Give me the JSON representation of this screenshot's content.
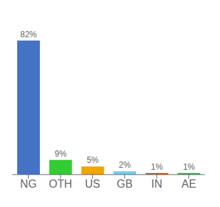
{
  "chart_data": {
    "type": "bar",
    "categories": [
      "NG",
      "OTH",
      "US",
      "GB",
      "IN",
      "AE"
    ],
    "values": [
      82,
      9,
      5,
      2,
      1,
      1
    ],
    "value_labels": [
      "82%",
      "9%",
      "5%",
      "2%",
      "1%",
      "1%"
    ],
    "colors": [
      "#4472c4",
      "#33cc33",
      "#f0a500",
      "#77ccee",
      "#cc5500",
      "#33aa55"
    ],
    "ylim": [
      0,
      95
    ],
    "data_labels": true,
    "tick_labels": "x",
    "grid": false
  }
}
